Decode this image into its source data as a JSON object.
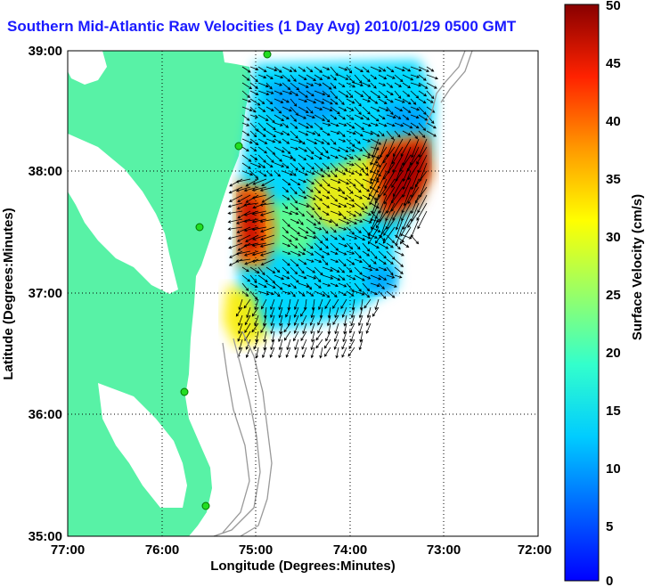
{
  "title": "Southern Mid-Atlantic Raw Velocities (1 Day Avg) 2010/01/29 0500 GMT",
  "colors": {
    "land": "#58f2a6",
    "title": "#1a1aff",
    "station": "#22dd22",
    "bathymetry": "#999999"
  },
  "map": {
    "xlabel": "Longitude (Degrees:Minutes)",
    "ylabel": "Latitude (Degrees:Minutes)",
    "xticks": [
      "77:00",
      "76:00",
      "75:00",
      "74:00",
      "73:00",
      "72:00"
    ],
    "yticks": [
      "39:00",
      "38:00",
      "37:00",
      "36:00",
      "35:00"
    ],
    "lon_range": [
      -77,
      -72
    ],
    "lat_range": [
      35,
      39
    ],
    "grid": "dotted"
  },
  "colorbar": {
    "label": "Surface Velocity (cm/s)",
    "ticks": [
      "50",
      "45",
      "40",
      "35",
      "30",
      "25",
      "20",
      "15",
      "10",
      "5",
      "0"
    ],
    "range": [
      0,
      50
    ]
  }
}
